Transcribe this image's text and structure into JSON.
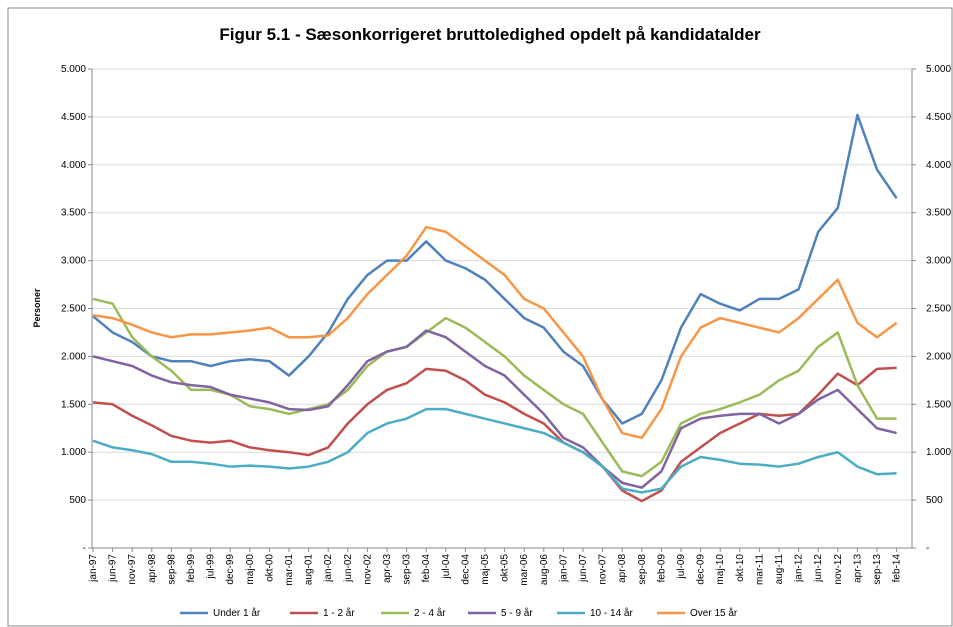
{
  "chart_data": {
    "type": "line",
    "title": "Figur 5.1 - Sæsonkorrigeret bruttoledighed opdelt på kandidatalder",
    "y_label": "Personer",
    "categories": [
      "jan-97",
      "jun-97",
      "nov-97",
      "apr-98",
      "sep-98",
      "feb-99",
      "jul-99",
      "dec-99",
      "maj-00",
      "okt-00",
      "mar-01",
      "aug-01",
      "jan-02",
      "jun-02",
      "nov-02",
      "apr-03",
      "sep-03",
      "feb-04",
      "jul-04",
      "dec-04",
      "maj-05",
      "okt-05",
      "mar-06",
      "aug-06",
      "jan-07",
      "jun-07",
      "nov-07",
      "apr-08",
      "sep-08",
      "feb-09",
      "jul-09",
      "dec-09",
      "maj-10",
      "okt-10",
      "mar-11",
      "aug-11",
      "jan-12",
      "jun-12",
      "nov-12",
      "apr-13",
      "sep-13",
      "feb-14"
    ],
    "series": [
      {
        "name": "Under 1 år",
        "color": "#4f81bd",
        "values": [
          2420,
          2250,
          2150,
          2000,
          1950,
          1950,
          1900,
          1950,
          1970,
          1950,
          1800,
          2000,
          2250,
          2600,
          2850,
          3000,
          3000,
          3200,
          3000,
          2920,
          2800,
          2600,
          2400,
          2300,
          2050,
          1900,
          1550,
          1300,
          1400,
          1750,
          2300,
          2650,
          2550,
          2480,
          2600,
          2600,
          2700,
          3300,
          3550,
          4520,
          3950,
          3650
        ]
      },
      {
        "name": "1 - 2 år",
        "color": "#c0504d",
        "values": [
          1520,
          1500,
          1380,
          1280,
          1170,
          1120,
          1100,
          1120,
          1050,
          1020,
          1000,
          970,
          1050,
          1300,
          1500,
          1650,
          1720,
          1870,
          1850,
          1750,
          1600,
          1520,
          1400,
          1300,
          1100,
          1000,
          850,
          600,
          490,
          600,
          900,
          1050,
          1200,
          1300,
          1400,
          1380,
          1400,
          1600,
          1820,
          1700,
          1870,
          1880
        ]
      },
      {
        "name": "2 - 4 år",
        "color": "#9bbb59",
        "values": [
          2600,
          2550,
          2200,
          2000,
          1850,
          1650,
          1650,
          1600,
          1480,
          1450,
          1400,
          1450,
          1500,
          1650,
          1900,
          2050,
          2100,
          2250,
          2400,
          2300,
          2150,
          2000,
          1800,
          1650,
          1500,
          1400,
          1100,
          800,
          750,
          900,
          1300,
          1400,
          1450,
          1520,
          1600,
          1750,
          1850,
          2100,
          2250,
          1700,
          1350,
          1350
        ]
      },
      {
        "name": "5 - 9 år",
        "color": "#8064a2",
        "values": [
          2000,
          1950,
          1900,
          1800,
          1730,
          1700,
          1680,
          1600,
          1560,
          1520,
          1450,
          1440,
          1480,
          1700,
          1950,
          2050,
          2100,
          2270,
          2200,
          2050,
          1900,
          1800,
          1600,
          1400,
          1150,
          1050,
          850,
          680,
          630,
          800,
          1250,
          1350,
          1380,
          1400,
          1400,
          1300,
          1400,
          1550,
          1650,
          1450,
          1250,
          1200
        ]
      },
      {
        "name": "10 - 14 år",
        "color": "#4bacc6",
        "values": [
          1120,
          1050,
          1020,
          980,
          900,
          900,
          880,
          850,
          860,
          850,
          830,
          850,
          900,
          1000,
          1200,
          1300,
          1350,
          1450,
          1450,
          1400,
          1350,
          1300,
          1250,
          1200,
          1100,
          1000,
          850,
          620,
          580,
          620,
          850,
          950,
          920,
          880,
          870,
          850,
          880,
          950,
          1000,
          850,
          770,
          780
        ]
      },
      {
        "name": "Over 15 år",
        "color": "#f79646",
        "values": [
          2430,
          2400,
          2330,
          2250,
          2200,
          2230,
          2230,
          2250,
          2270,
          2300,
          2200,
          2200,
          2220,
          2400,
          2650,
          2850,
          3050,
          3350,
          3300,
          3150,
          3000,
          2850,
          2600,
          2500,
          2250,
          2000,
          1550,
          1200,
          1150,
          1450,
          2000,
          2300,
          2400,
          2350,
          2300,
          2250,
          2400,
          2600,
          2800,
          2350,
          2200,
          2350
        ]
      }
    ],
    "ylim": [
      0,
      5000
    ],
    "yticks": [
      {
        "value": 0,
        "label": "-"
      },
      500,
      {
        "value": 1000,
        "label": "1.000"
      },
      {
        "value": 1500,
        "label": "1.500"
      },
      {
        "value": 2000,
        "label": "2.000"
      },
      {
        "value": 2500,
        "label": "2.500"
      },
      {
        "value": 3000,
        "label": "3.000"
      },
      {
        "value": 3500,
        "label": "3.500"
      },
      {
        "value": 4000,
        "label": "4.000"
      },
      {
        "value": 4500,
        "label": "4.500"
      },
      {
        "value": 5000,
        "label": "5.000"
      }
    ],
    "grid": true,
    "legend": "bottom"
  }
}
